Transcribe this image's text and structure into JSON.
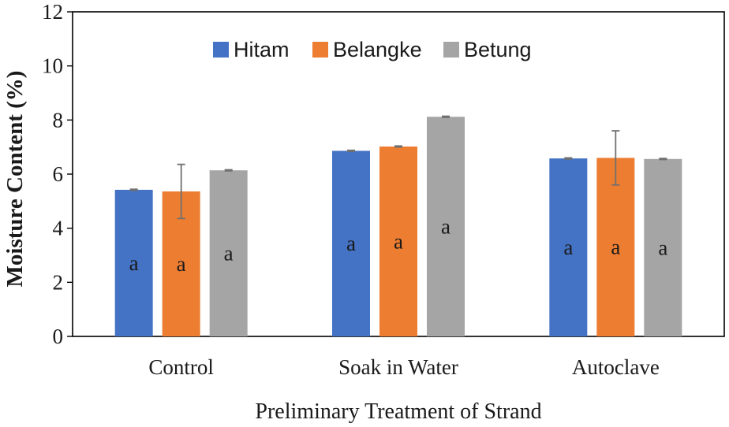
{
  "chart_data": {
    "type": "bar",
    "title": "",
    "xlabel": "Preliminary Treatment of Strand",
    "ylabel": "Moisture Content (%)",
    "ylim": [
      0,
      12
    ],
    "yticks": [
      0,
      2,
      4,
      6,
      8,
      10,
      12
    ],
    "grid": false,
    "legend_position": "top-center",
    "categories": [
      "Control",
      "Soak in Water",
      "Autoclave"
    ],
    "series": [
      {
        "name": "Hitam",
        "color": "#4472C4",
        "values": [
          5.42,
          6.86,
          6.58
        ],
        "errors": [
          0.02,
          0.02,
          0.02
        ],
        "labels": [
          "a",
          "a",
          "a"
        ]
      },
      {
        "name": "Belangke",
        "color": "#ED7D31",
        "values": [
          5.36,
          7.02,
          6.6
        ],
        "errors": [
          1.0,
          0.02,
          1.0
        ],
        "labels": [
          "a",
          "a",
          "a"
        ]
      },
      {
        "name": "Betung",
        "color": "#A5A5A5",
        "values": [
          6.14,
          8.12,
          6.56
        ],
        "errors": [
          0.02,
          0.02,
          0.02
        ],
        "labels": [
          "a",
          "a",
          "a"
        ]
      }
    ]
  }
}
